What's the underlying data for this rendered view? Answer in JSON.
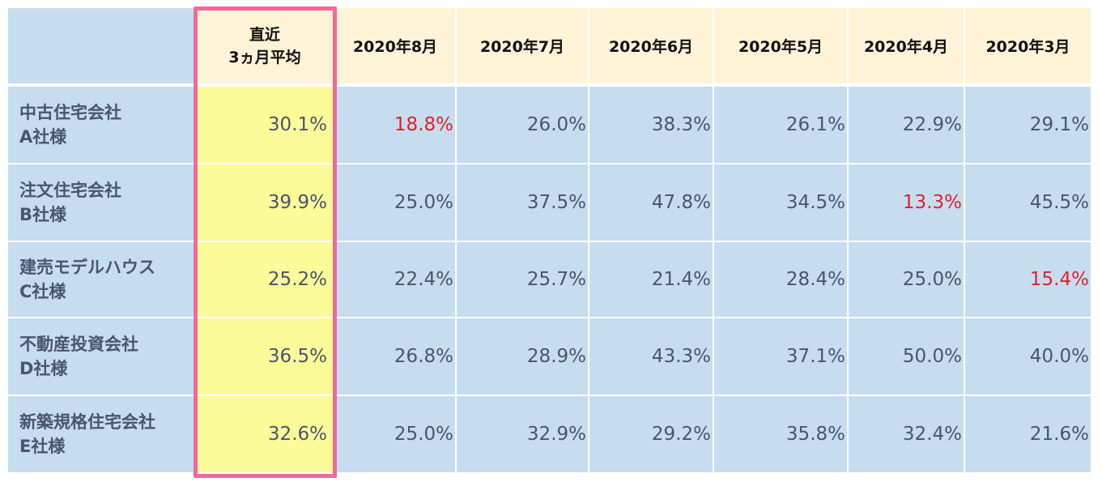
{
  "table": {
    "corner_label": "",
    "avg_header_line1": "直近",
    "avg_header_line2": "3ヵ月平均",
    "months": [
      "2020年8月",
      "2020年7月",
      "2020年6月",
      "2020年5月",
      "2020年4月",
      "2020年3月"
    ],
    "rows": [
      {
        "name_line1": "中古住宅会社",
        "name_line2": "A社様",
        "avg": "30.1%",
        "values": [
          "18.8%",
          "26.0%",
          "38.3%",
          "26.1%",
          "22.9%",
          "29.1%"
        ],
        "low_index": 0
      },
      {
        "name_line1": "注文住宅会社",
        "name_line2": "B社様",
        "avg": "39.9%",
        "values": [
          "25.0%",
          "37.5%",
          "47.8%",
          "34.5%",
          "13.3%",
          "45.5%"
        ],
        "low_index": 4
      },
      {
        "name_line1": "建売モデルハウス",
        "name_line2": "C社様",
        "avg": "25.2%",
        "values": [
          "22.4%",
          "25.7%",
          "21.4%",
          "28.4%",
          "25.0%",
          "15.4%"
        ],
        "low_index": 5
      },
      {
        "name_line1": "不動産投資会社",
        "name_line2": "D社様",
        "avg": "36.5%",
        "values": [
          "26.8%",
          "28.9%",
          "43.3%",
          "37.1%",
          "50.0%",
          "40.0%"
        ],
        "low_index": -1
      },
      {
        "name_line1": "新築規格住宅会社",
        "name_line2": "E社様",
        "avg": "32.6%",
        "values": [
          "25.0%",
          "32.9%",
          "29.2%",
          "35.8%",
          "32.4%",
          "21.6%"
        ],
        "low_index": -1
      }
    ]
  },
  "colors": {
    "header_bg": "#fdf3d6",
    "body_bg": "#c6ddef",
    "avg_column_bg": "#fbfb9a",
    "highlight_border": "#f0699a",
    "low_value_text": "#e0202e",
    "body_text": "#4a5570"
  }
}
